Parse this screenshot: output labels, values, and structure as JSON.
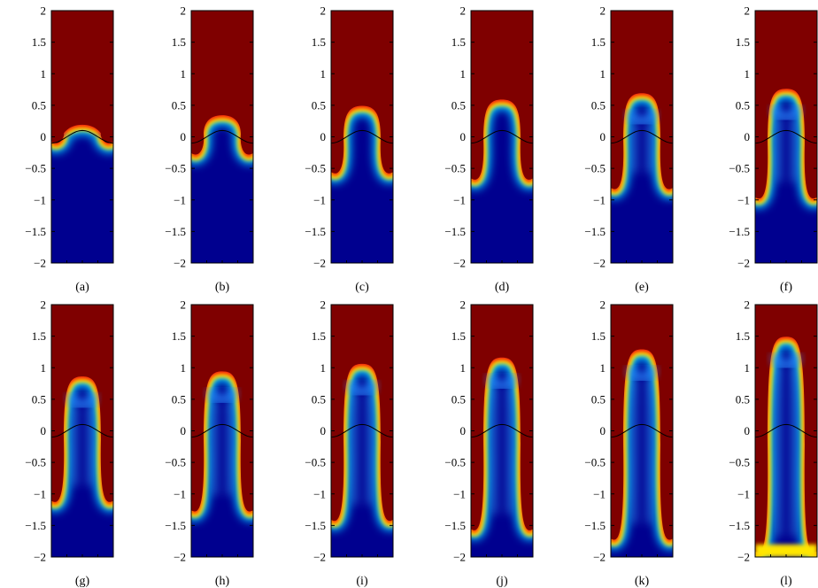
{
  "chart_data": {
    "type": "heatmap",
    "description_colormap": "jet",
    "colors": {
      "top_fluid": "#7f0000",
      "bottom_fluid": "#00008f",
      "interface_line": "#000000",
      "axis": "#000000"
    },
    "ylim": [
      -2,
      2
    ],
    "yticks": [
      -2,
      -1.5,
      -1,
      -0.5,
      0,
      0.5,
      1,
      1.5,
      2
    ],
    "ytick_labels": [
      "−2",
      "−1.5",
      "−1",
      "−0.5",
      "0",
      "0.5",
      "1",
      "1.5",
      "2"
    ],
    "initial_interface_amplitude": 0.1,
    "panels": [
      {
        "label": "(a)",
        "bubble_top": 0.15,
        "spike_depth": -0.12,
        "wall_band": 0.0
      },
      {
        "label": "(b)",
        "bubble_top": 0.3,
        "spike_depth": -0.3,
        "wall_band": 0.0
      },
      {
        "label": "(c)",
        "bubble_top": 0.45,
        "spike_depth": -0.6,
        "wall_band": 0.0
      },
      {
        "label": "(d)",
        "bubble_top": 0.55,
        "spike_depth": -0.7,
        "wall_band": 0.0
      },
      {
        "label": "(e)",
        "bubble_top": 0.65,
        "spike_depth": -0.85,
        "wall_band": 0.0
      },
      {
        "label": "(f)",
        "bubble_top": 0.72,
        "spike_depth": -1.0,
        "wall_band": 0.0
      },
      {
        "label": "(g)",
        "bubble_top": 0.82,
        "spike_depth": -1.15,
        "wall_band": 0.0
      },
      {
        "label": "(h)",
        "bubble_top": 0.9,
        "spike_depth": -1.3,
        "wall_band": 0.0
      },
      {
        "label": "(i)",
        "bubble_top": 1.02,
        "spike_depth": -1.45,
        "wall_band": 0.0
      },
      {
        "label": "(j)",
        "bubble_top": 1.12,
        "spike_depth": -1.6,
        "wall_band": 0.0
      },
      {
        "label": "(k)",
        "bubble_top": 1.25,
        "spike_depth": -1.75,
        "wall_band": 0.0
      },
      {
        "label": "(l)",
        "bubble_top": 1.45,
        "spike_depth": -1.95,
        "wall_band": 0.12
      }
    ]
  }
}
